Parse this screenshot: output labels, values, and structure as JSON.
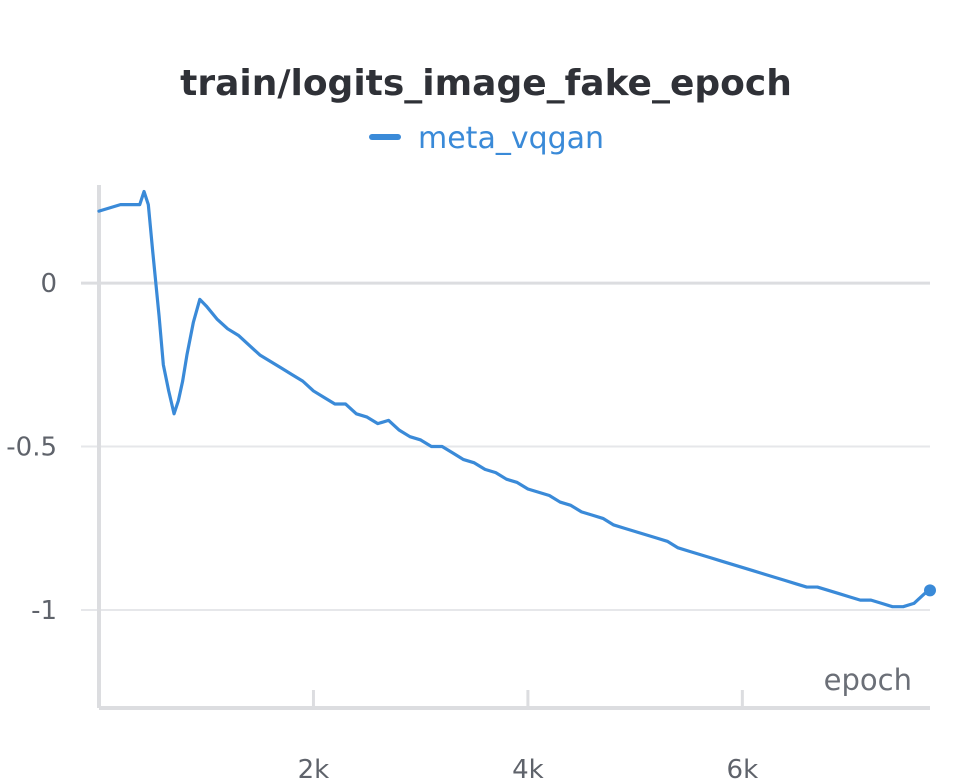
{
  "chart_data": {
    "type": "line",
    "title": "train/logits_image_fake_epoch",
    "xlabel": "epoch",
    "ylabel": "",
    "xlim": [
      0,
      7750
    ],
    "ylim": [
      -1.3,
      0.3
    ],
    "x_ticks": [
      {
        "value": 2000,
        "label": "2k"
      },
      {
        "value": 4000,
        "label": "4k"
      },
      {
        "value": 6000,
        "label": "6k"
      }
    ],
    "y_ticks": [
      {
        "value": 0,
        "label": "0"
      },
      {
        "value": -0.5,
        "label": "-0.5"
      },
      {
        "value": -1,
        "label": "-1"
      }
    ],
    "grid": true,
    "legend_position": "top-center",
    "series": [
      {
        "name": "meta_vqgan",
        "color": "#3a8ad8",
        "points": [
          [
            0,
            0.22
          ],
          [
            100,
            0.23
          ],
          [
            200,
            0.24
          ],
          [
            300,
            0.24
          ],
          [
            380,
            0.24
          ],
          [
            420,
            0.28
          ],
          [
            460,
            0.24
          ],
          [
            500,
            0.1
          ],
          [
            560,
            -0.1
          ],
          [
            600,
            -0.25
          ],
          [
            650,
            -0.33
          ],
          [
            700,
            -0.4
          ],
          [
            740,
            -0.36
          ],
          [
            780,
            -0.3
          ],
          [
            820,
            -0.22
          ],
          [
            880,
            -0.12
          ],
          [
            940,
            -0.05
          ],
          [
            1000,
            -0.07
          ],
          [
            1100,
            -0.11
          ],
          [
            1200,
            -0.14
          ],
          [
            1300,
            -0.16
          ],
          [
            1400,
            -0.19
          ],
          [
            1500,
            -0.22
          ],
          [
            1600,
            -0.24
          ],
          [
            1700,
            -0.26
          ],
          [
            1800,
            -0.28
          ],
          [
            1900,
            -0.3
          ],
          [
            2000,
            -0.33
          ],
          [
            2100,
            -0.35
          ],
          [
            2200,
            -0.37
          ],
          [
            2300,
            -0.37
          ],
          [
            2400,
            -0.4
          ],
          [
            2500,
            -0.41
          ],
          [
            2600,
            -0.43
          ],
          [
            2700,
            -0.42
          ],
          [
            2800,
            -0.45
          ],
          [
            2900,
            -0.47
          ],
          [
            3000,
            -0.48
          ],
          [
            3100,
            -0.5
          ],
          [
            3200,
            -0.5
          ],
          [
            3300,
            -0.52
          ],
          [
            3400,
            -0.54
          ],
          [
            3500,
            -0.55
          ],
          [
            3600,
            -0.57
          ],
          [
            3700,
            -0.58
          ],
          [
            3800,
            -0.6
          ],
          [
            3900,
            -0.61
          ],
          [
            4000,
            -0.63
          ],
          [
            4100,
            -0.64
          ],
          [
            4200,
            -0.65
          ],
          [
            4300,
            -0.67
          ],
          [
            4400,
            -0.68
          ],
          [
            4500,
            -0.7
          ],
          [
            4600,
            -0.71
          ],
          [
            4700,
            -0.72
          ],
          [
            4800,
            -0.74
          ],
          [
            4900,
            -0.75
          ],
          [
            5000,
            -0.76
          ],
          [
            5100,
            -0.77
          ],
          [
            5200,
            -0.78
          ],
          [
            5300,
            -0.79
          ],
          [
            5400,
            -0.81
          ],
          [
            5500,
            -0.82
          ],
          [
            5600,
            -0.83
          ],
          [
            5700,
            -0.84
          ],
          [
            5800,
            -0.85
          ],
          [
            5900,
            -0.86
          ],
          [
            6000,
            -0.87
          ],
          [
            6100,
            -0.88
          ],
          [
            6200,
            -0.89
          ],
          [
            6300,
            -0.9
          ],
          [
            6400,
            -0.91
          ],
          [
            6500,
            -0.92
          ],
          [
            6600,
            -0.93
          ],
          [
            6700,
            -0.93
          ],
          [
            6800,
            -0.94
          ],
          [
            6900,
            -0.95
          ],
          [
            7000,
            -0.96
          ],
          [
            7100,
            -0.97
          ],
          [
            7200,
            -0.97
          ],
          [
            7300,
            -0.98
          ],
          [
            7400,
            -0.99
          ],
          [
            7500,
            -0.99
          ],
          [
            7600,
            -0.98
          ],
          [
            7700,
            -0.95
          ],
          [
            7750,
            -0.94
          ]
        ]
      }
    ]
  }
}
